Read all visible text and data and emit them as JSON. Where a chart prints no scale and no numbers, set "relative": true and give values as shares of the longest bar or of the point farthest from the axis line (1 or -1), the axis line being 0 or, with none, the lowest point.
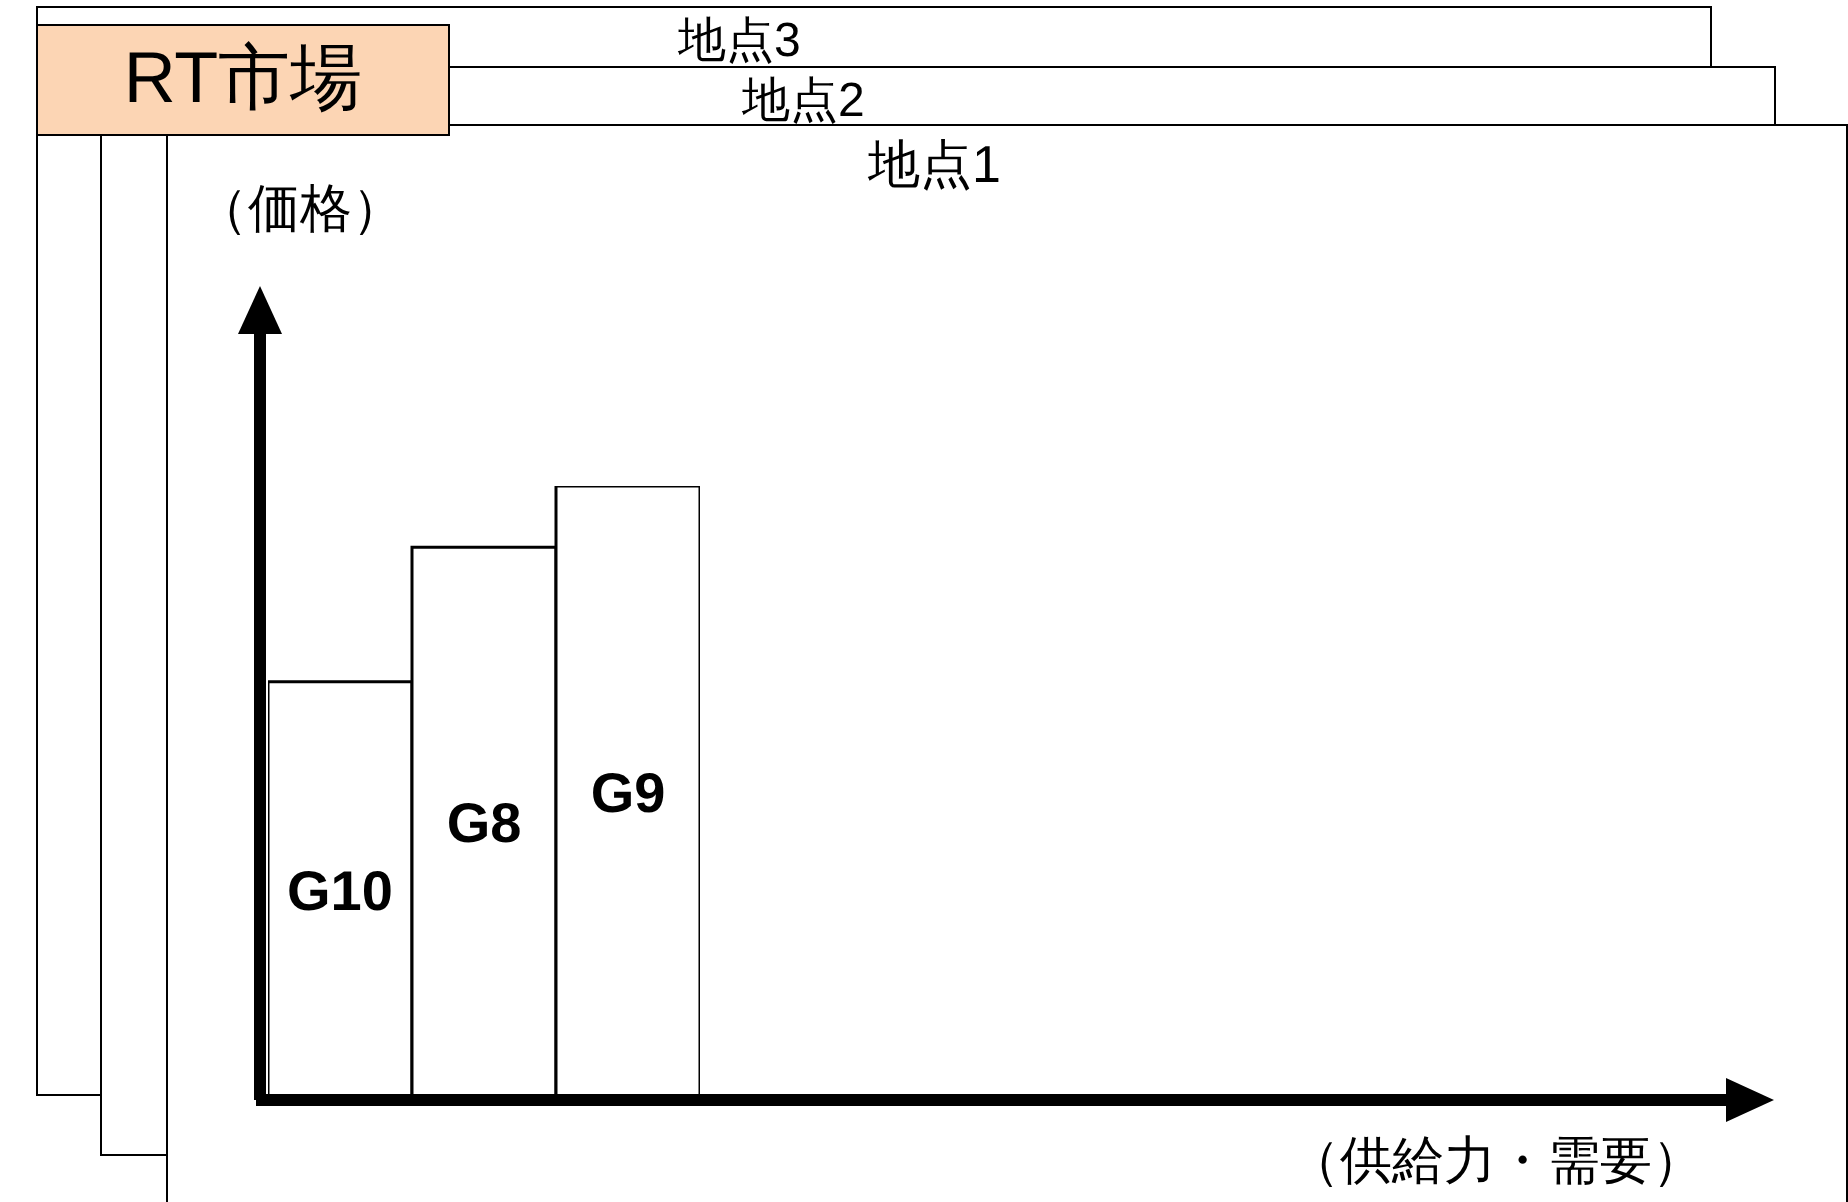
{
  "chart_data": {
    "type": "bar",
    "title": "地点1",
    "ylabel": "（価格）",
    "annotations": [
      "RT市場",
      "地点2",
      "地点3",
      "（供給力・需要）"
    ],
    "categories": [
      "G10",
      "G8",
      "G9"
    ],
    "values": [
      0.68,
      0.9,
      1
    ],
    "color": "#ffffff",
    "relative": true,
    "grid": false,
    "legend": false
  }
}
